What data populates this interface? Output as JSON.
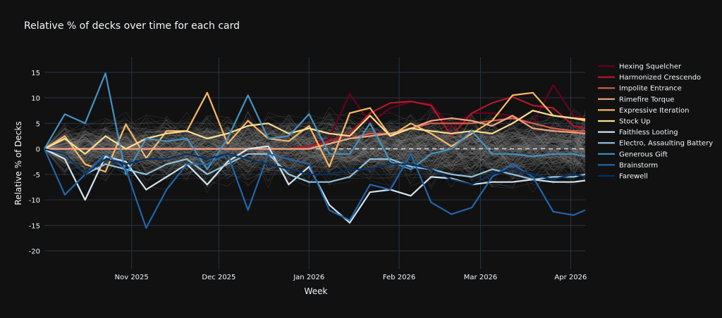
{
  "chart_data": {
    "type": "line",
    "title": "Relative  % of decks over time for each card",
    "xlabel": "Week",
    "ylabel": "Relative % of Decks",
    "ylim": [
      -23.5,
      18
    ],
    "yticks": [
      15,
      10,
      5,
      0,
      -5,
      -10,
      -15,
      -20
    ],
    "xlim": [
      "2025-10-02",
      "2026-04-06"
    ],
    "xticks": [
      {
        "label": "Nov 2025",
        "date": "2025-11-01"
      },
      {
        "label": "Dec 2025",
        "date": "2025-12-01"
      },
      {
        "label": "Jan 2026",
        "date": "2026-01-01"
      },
      {
        "label": "Feb 2026",
        "date": "2026-02-01"
      },
      {
        "label": "Mar 2026",
        "date": "2026-03-01"
      },
      {
        "label": "Apr 2026",
        "date": "2026-04-01"
      }
    ],
    "zero_line": true,
    "grid": true,
    "legend_position": "right",
    "x": [
      "2025-10-02",
      "2025-10-09",
      "2025-10-16",
      "2025-10-23",
      "2025-10-30",
      "2025-11-06",
      "2025-11-13",
      "2025-11-20",
      "2025-11-27",
      "2025-12-04",
      "2025-12-11",
      "2025-12-18",
      "2025-12-25",
      "2026-01-01",
      "2026-01-08",
      "2026-01-15",
      "2026-01-22",
      "2026-01-29",
      "2026-02-05",
      "2026-02-12",
      "2026-02-19",
      "2026-02-26",
      "2026-03-05",
      "2026-03-12",
      "2026-03-19",
      "2026-03-26",
      "2026-04-02",
      "2026-04-06"
    ],
    "series": [
      {
        "name": "Hexing Squelcher",
        "color": "#67001f",
        "values": [
          0,
          0,
          0,
          0,
          0,
          0,
          0,
          0,
          0,
          0,
          0,
          0,
          0,
          0.5,
          2,
          10.8,
          5,
          8,
          9.2,
          8.8,
          4,
          7,
          7,
          6.5,
          5,
          12.5,
          6.5,
          6
        ]
      },
      {
        "name": "Harmonized Crescendo",
        "color": "#b2182b",
        "values": [
          0,
          0,
          0,
          0,
          0,
          0,
          0,
          0,
          0,
          0,
          0,
          0,
          0,
          0.5,
          1.5,
          3,
          7,
          9,
          9.3,
          8.5,
          2.5,
          7,
          9,
          10.2,
          8.5,
          8,
          4.5,
          4
        ]
      },
      {
        "name": "Impolite Entrance",
        "color": "#d6604d",
        "values": [
          0,
          0,
          0,
          0,
          0,
          0,
          0,
          0,
          0,
          0,
          0,
          0,
          0,
          0,
          1,
          2,
          3,
          3,
          4,
          5,
          5,
          5,
          5.5,
          6,
          5,
          4,
          3.5,
          3.5
        ]
      },
      {
        "name": "Rimefire Torque",
        "color": "#f4a582",
        "values": [
          0,
          0,
          0,
          0,
          0,
          0,
          0,
          0,
          0,
          0,
          0,
          0,
          0,
          0,
          1,
          2,
          2.5,
          3,
          4,
          5.5,
          6,
          5.5,
          4.5,
          6.5,
          4,
          3.5,
          3.2,
          3
        ]
      },
      {
        "name": "Expressive Iteration",
        "color": "#fdb863",
        "values": [
          0,
          2.5,
          -3,
          -4.5,
          4.8,
          -1.8,
          3.5,
          3.5,
          11,
          1,
          5.5,
          2,
          1.5,
          4.5,
          -3.5,
          7,
          8,
          2.5,
          5,
          3,
          0.5,
          3,
          5.5,
          10.5,
          11,
          6.5,
          6,
          5.5
        ]
      },
      {
        "name": "Stock Up",
        "color": "#fee090",
        "values": [
          0,
          2,
          -1,
          2.5,
          0,
          2,
          3,
          3.5,
          2,
          3,
          4.5,
          5,
          3,
          4,
          3,
          2.5,
          6.5,
          2.5,
          4,
          3.5,
          3,
          3.5,
          3,
          5,
          7.5,
          6.5,
          6,
          5.8
        ]
      },
      {
        "name": "Faithless Looting",
        "color": "#d1e5f0",
        "values": [
          0,
          -2,
          -10,
          -1.5,
          -2.5,
          -8,
          -5.5,
          -3,
          -7,
          -2.5,
          0,
          0.5,
          -7,
          -3.5,
          -11,
          -14.5,
          -8.5,
          -8,
          -9.2,
          -5.5,
          -5.8,
          -7,
          -6.5,
          -6.5,
          -6,
          -6.5,
          -6.5,
          -6.2
        ]
      },
      {
        "name": "Electro, Assaulting Battery",
        "color": "#92c5de",
        "values": [
          0,
          -1,
          -5,
          -3,
          -4,
          -5,
          -3,
          -2,
          -5,
          -3,
          -1,
          -1,
          -5,
          -6.5,
          -6.5,
          -5.5,
          -2,
          -2,
          -3.5,
          -4,
          -5,
          -5.5,
          -4,
          -5,
          -6,
          -5.5,
          -5.5,
          -5
        ]
      },
      {
        "name": "Generous Gift",
        "color": "#4393c3",
        "values": [
          0,
          6.8,
          5,
          14.8,
          -5,
          2,
          1.5,
          2,
          -4,
          2,
          10.5,
          2,
          2.5,
          6.8,
          -1,
          -1,
          5,
          -2.5,
          -4,
          -1,
          0,
          3.5,
          -1,
          -1,
          -1.5,
          -1,
          -1,
          -1.5
        ]
      },
      {
        "name": "Brainstorm",
        "color": "#2166ac",
        "values": [
          0,
          -9,
          -5,
          -1,
          -4,
          -15.5,
          -8,
          -3,
          -3,
          -1,
          -12,
          -1,
          -2,
          -3,
          -12,
          -14,
          -7,
          -8,
          -1,
          -10.5,
          -12.8,
          -11.5,
          -5.5,
          -3,
          -5.5,
          -12.3,
          -13,
          -12
        ]
      },
      {
        "name": "Farewell",
        "color": "#053061",
        "values": [
          0,
          -1,
          -5,
          -2,
          -3,
          -2,
          -2,
          -1,
          -2,
          -1,
          -2,
          -3,
          -4,
          -5,
          -5,
          -4,
          -4,
          -3,
          -3,
          -4,
          -6,
          -7,
          -5,
          -4,
          -5,
          -6,
          -5,
          -5.5
        ]
      }
    ],
    "background_series_count": 180
  }
}
